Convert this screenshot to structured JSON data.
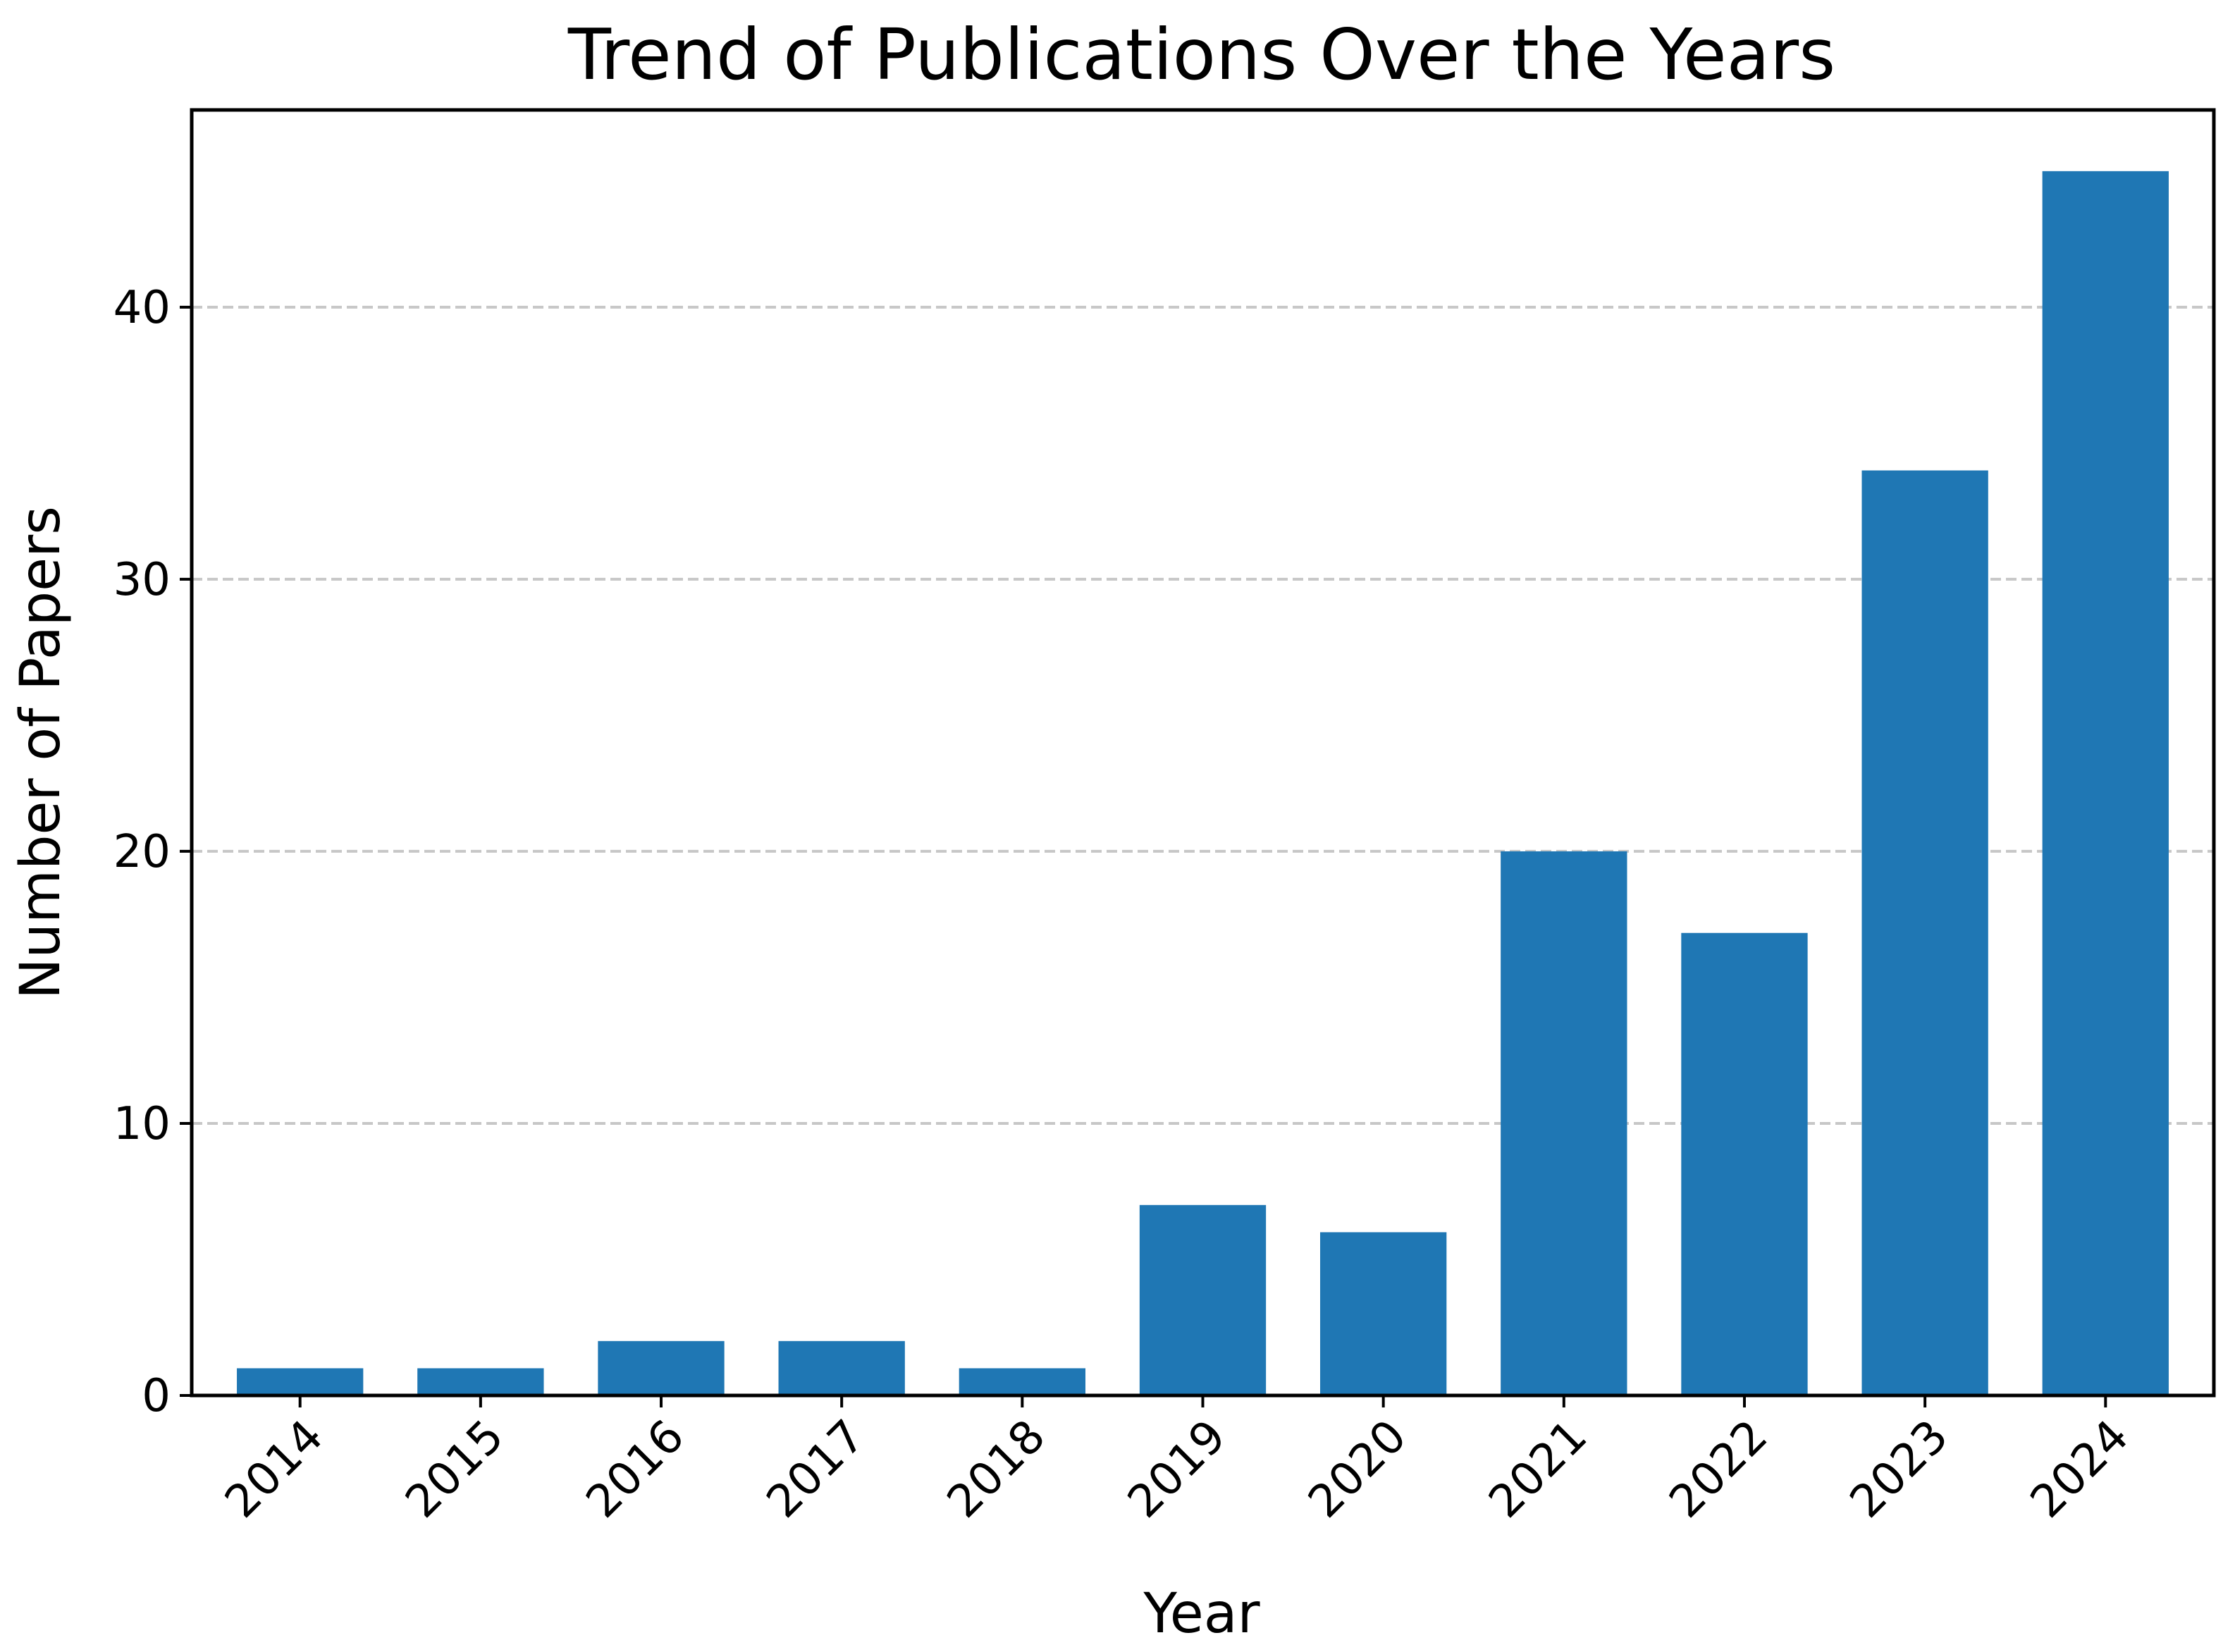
{
  "chart_data": {
    "type": "bar",
    "title": "Trend of Publications Over the Years",
    "xlabel": "Year",
    "ylabel": "Number of Papers",
    "categories": [
      "2014",
      "2015",
      "2016",
      "2017",
      "2018",
      "2019",
      "2020",
      "2021",
      "2022",
      "2023",
      "2024"
    ],
    "values": [
      1,
      1,
      2,
      2,
      1,
      7,
      6,
      20,
      17,
      34,
      45
    ],
    "yticks": [
      0,
      10,
      20,
      30,
      40
    ],
    "ylim": [
      0,
      47.25
    ],
    "grid": "y-axis dashed",
    "legend": "none",
    "bar_color": "#1f77b4",
    "grid_color": "#c7c7c7"
  }
}
